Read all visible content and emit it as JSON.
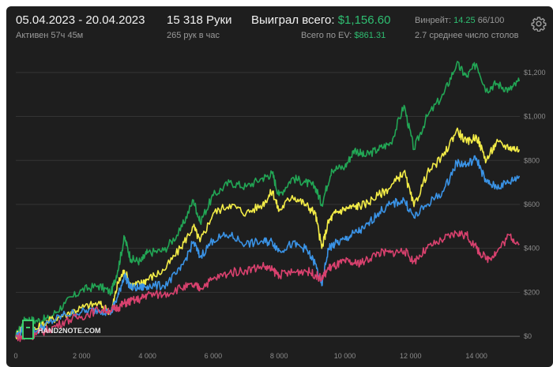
{
  "header": {
    "date_range": "05.04.2023 - 20.04.2023",
    "active_time": "Активен 57ч 45м",
    "hands": "15 318 Руки",
    "hands_per_hour": "265 рук в час",
    "won_label": "Выиграл всего:",
    "won_value": "$1,156.60",
    "ev_label": "Всего по EV:",
    "ev_value": "$861.31",
    "winrate_label": "Винрейт:",
    "winrate_value": "14.25",
    "winrate_extra": "66/100",
    "avg_tables": "2.7 среднее число столов",
    "settings_icon": "gear-icon"
  },
  "logo": {
    "text": "HAND2NOTE.COM"
  },
  "colors": {
    "background": "#1e1e1e",
    "green": "#22a655",
    "yellow": "#f3ec47",
    "blue": "#3a93e6",
    "pink": "#d8416e",
    "accent_green": "#2fbf72"
  },
  "chart_data": {
    "type": "line",
    "x_ticks": [
      "0",
      "2 000",
      "4 000",
      "6 000",
      "8 000",
      "10 000",
      "12 000",
      "14 000"
    ],
    "x_tick_values": [
      0,
      2000,
      4000,
      6000,
      8000,
      10000,
      12000,
      14000
    ],
    "y_ticks": [
      "$0",
      "$200",
      "$400",
      "$600",
      "$800",
      "$1,000",
      "$1,200"
    ],
    "y_tick_values": [
      0,
      200,
      400,
      600,
      800,
      1000,
      1200
    ],
    "xlim": [
      0,
      15318
    ],
    "ylim": [
      -50,
      1300
    ],
    "grid": true,
    "series": [
      {
        "color": "green",
        "points": [
          [
            0,
            0
          ],
          [
            300,
            80
          ],
          [
            600,
            70
          ],
          [
            1000,
            80
          ],
          [
            1500,
            150
          ],
          [
            2000,
            210
          ],
          [
            2500,
            230
          ],
          [
            2900,
            200
          ],
          [
            3100,
            300
          ],
          [
            3300,
            450
          ],
          [
            3500,
            350
          ],
          [
            3800,
            340
          ],
          [
            4000,
            380
          ],
          [
            4500,
            390
          ],
          [
            5000,
            480
          ],
          [
            5400,
            620
          ],
          [
            5600,
            520
          ],
          [
            6000,
            640
          ],
          [
            6500,
            700
          ],
          [
            7000,
            680
          ],
          [
            7500,
            720
          ],
          [
            7800,
            740
          ],
          [
            8000,
            640
          ],
          [
            8400,
            720
          ],
          [
            8800,
            700
          ],
          [
            9100,
            680
          ],
          [
            9300,
            600
          ],
          [
            9600,
            760
          ],
          [
            10000,
            770
          ],
          [
            10300,
            850
          ],
          [
            10600,
            820
          ],
          [
            11000,
            850
          ],
          [
            11400,
            880
          ],
          [
            11800,
            1050
          ],
          [
            12100,
            850
          ],
          [
            12500,
            1000
          ],
          [
            13000,
            1100
          ],
          [
            13400,
            1240
          ],
          [
            13700,
            1180
          ],
          [
            14000,
            1240
          ],
          [
            14300,
            1120
          ],
          [
            14600,
            1150
          ],
          [
            15000,
            1120
          ],
          [
            15300,
            1160
          ]
        ]
      },
      {
        "color": "yellow",
        "points": [
          [
            0,
            0
          ],
          [
            300,
            60
          ],
          [
            600,
            30
          ],
          [
            1000,
            70
          ],
          [
            1500,
            100
          ],
          [
            2000,
            130
          ],
          [
            2500,
            150
          ],
          [
            2900,
            110
          ],
          [
            3100,
            240
          ],
          [
            3300,
            300
          ],
          [
            3500,
            230
          ],
          [
            3800,
            240
          ],
          [
            4000,
            260
          ],
          [
            4500,
            300
          ],
          [
            5000,
            400
          ],
          [
            5400,
            500
          ],
          [
            5600,
            430
          ],
          [
            6000,
            560
          ],
          [
            6500,
            600
          ],
          [
            7000,
            560
          ],
          [
            7500,
            600
          ],
          [
            7800,
            660
          ],
          [
            8000,
            570
          ],
          [
            8400,
            640
          ],
          [
            8800,
            600
          ],
          [
            9100,
            560
          ],
          [
            9300,
            400
          ],
          [
            9500,
            520
          ],
          [
            9700,
            560
          ],
          [
            10000,
            580
          ],
          [
            10300,
            590
          ],
          [
            10600,
            600
          ],
          [
            11000,
            640
          ],
          [
            11400,
            680
          ],
          [
            11800,
            750
          ],
          [
            12100,
            590
          ],
          [
            12500,
            740
          ],
          [
            13000,
            820
          ],
          [
            13400,
            940
          ],
          [
            13700,
            880
          ],
          [
            14000,
            910
          ],
          [
            14300,
            800
          ],
          [
            14600,
            880
          ],
          [
            15000,
            860
          ],
          [
            15300,
            850
          ]
        ]
      },
      {
        "color": "blue",
        "points": [
          [
            0,
            0
          ],
          [
            300,
            40
          ],
          [
            600,
            20
          ],
          [
            1000,
            60
          ],
          [
            1500,
            100
          ],
          [
            2000,
            110
          ],
          [
            2500,
            120
          ],
          [
            2900,
            110
          ],
          [
            3100,
            180
          ],
          [
            3300,
            280
          ],
          [
            3500,
            220
          ],
          [
            3800,
            220
          ],
          [
            4000,
            230
          ],
          [
            4500,
            230
          ],
          [
            5000,
            300
          ],
          [
            5400,
            430
          ],
          [
            5600,
            360
          ],
          [
            6000,
            440
          ],
          [
            6500,
            460
          ],
          [
            7000,
            420
          ],
          [
            7500,
            430
          ],
          [
            7800,
            430
          ],
          [
            8000,
            390
          ],
          [
            8400,
            420
          ],
          [
            8800,
            400
          ],
          [
            9100,
            330
          ],
          [
            9300,
            230
          ],
          [
            9500,
            400
          ],
          [
            9700,
            420
          ],
          [
            10000,
            440
          ],
          [
            10300,
            470
          ],
          [
            10600,
            490
          ],
          [
            11000,
            560
          ],
          [
            11400,
            600
          ],
          [
            11800,
            620
          ],
          [
            12100,
            540
          ],
          [
            12500,
            600
          ],
          [
            13000,
            660
          ],
          [
            13400,
            790
          ],
          [
            13700,
            780
          ],
          [
            14000,
            810
          ],
          [
            14300,
            700
          ],
          [
            14600,
            680
          ],
          [
            15000,
            700
          ],
          [
            15300,
            730
          ]
        ]
      },
      {
        "color": "pink",
        "points": [
          [
            0,
            0
          ],
          [
            300,
            -10
          ],
          [
            600,
            10
          ],
          [
            1000,
            30
          ],
          [
            1500,
            70
          ],
          [
            2000,
            90
          ],
          [
            2500,
            120
          ],
          [
            2900,
            120
          ],
          [
            3100,
            130
          ],
          [
            3300,
            150
          ],
          [
            3500,
            160
          ],
          [
            3800,
            170
          ],
          [
            4000,
            190
          ],
          [
            4500,
            190
          ],
          [
            5000,
            220
          ],
          [
            5400,
            230
          ],
          [
            5600,
            220
          ],
          [
            6000,
            260
          ],
          [
            6500,
            290
          ],
          [
            7000,
            300
          ],
          [
            7500,
            320
          ],
          [
            7800,
            300
          ],
          [
            8000,
            280
          ],
          [
            8400,
            290
          ],
          [
            8800,
            300
          ],
          [
            9100,
            280
          ],
          [
            9300,
            260
          ],
          [
            9500,
            310
          ],
          [
            9700,
            320
          ],
          [
            10000,
            340
          ],
          [
            10300,
            330
          ],
          [
            10600,
            340
          ],
          [
            11000,
            380
          ],
          [
            11400,
            380
          ],
          [
            11800,
            390
          ],
          [
            12100,
            340
          ],
          [
            12500,
            400
          ],
          [
            13000,
            440
          ],
          [
            13400,
            470
          ],
          [
            13700,
            460
          ],
          [
            14000,
            400
          ],
          [
            14300,
            350
          ],
          [
            14600,
            380
          ],
          [
            15000,
            460
          ],
          [
            15300,
            420
          ]
        ]
      }
    ]
  }
}
